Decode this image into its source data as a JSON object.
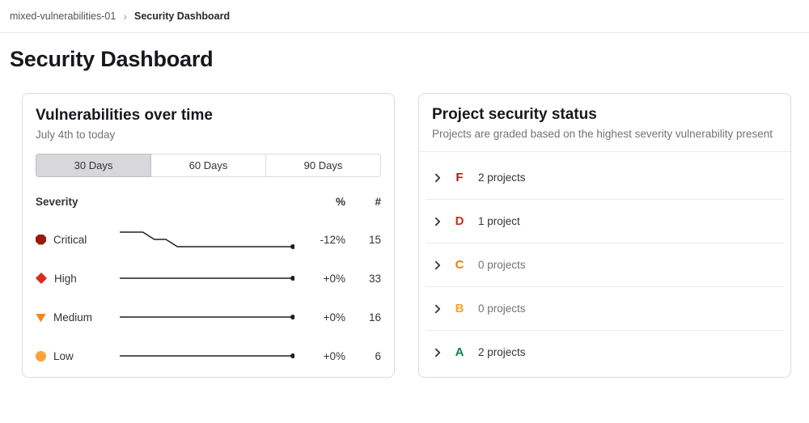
{
  "breadcrumb": {
    "project": "mixed-vulnerabilities-01",
    "separator": "›",
    "current": "Security Dashboard"
  },
  "page_title": "Security Dashboard",
  "vulnerabilities_card": {
    "title": "Vulnerabilities over time",
    "subtitle": "July 4th to today",
    "day_tabs": [
      {
        "label": "30 Days",
        "selected": true
      },
      {
        "label": "60 Days",
        "selected": false
      },
      {
        "label": "90 Days",
        "selected": false
      }
    ],
    "table": {
      "severity_header": "Severity",
      "percent_header": "%",
      "count_header": "#",
      "line_color": "#1f1e24",
      "rows": [
        {
          "severity": "Critical",
          "icon": "severity-critical-icon",
          "color": "#9c190e",
          "trend": [
            17,
            17,
            17,
            16,
            16,
            15,
            15,
            15,
            15,
            15,
            15,
            15,
            15,
            15,
            15,
            15
          ],
          "percent_change": "-12%",
          "count": 15
        },
        {
          "severity": "High",
          "icon": "severity-high-icon",
          "color": "#d92e1c",
          "trend": [
            33,
            33
          ],
          "percent_change": "+0%",
          "count": 33
        },
        {
          "severity": "Medium",
          "icon": "severity-medium-icon",
          "color": "#f28a1d",
          "trend": [
            16,
            16
          ],
          "percent_change": "+0%",
          "count": 16
        },
        {
          "severity": "Low",
          "icon": "severity-low-icon",
          "color": "#fca23d",
          "trend": [
            6,
            6
          ],
          "percent_change": "+0%",
          "count": 6
        }
      ]
    }
  },
  "status_card": {
    "title": "Project security status",
    "subtitle": "Projects are graded based on the highest severity vulnerability present",
    "grades": [
      {
        "grade": "F",
        "color": "#a02410",
        "label": "2 projects",
        "label_color": "#333238"
      },
      {
        "grade": "D",
        "color": "#cc3018",
        "label": "1 project",
        "label_color": "#333238"
      },
      {
        "grade": "C",
        "color": "#ef7d15",
        "label": "0 projects",
        "label_color": "#737278"
      },
      {
        "grade": "B",
        "color": "#fca227",
        "label": "0 projects",
        "label_color": "#737278"
      },
      {
        "grade": "A",
        "color": "#108548",
        "label": "2 projects",
        "label_color": "#333238"
      }
    ]
  }
}
